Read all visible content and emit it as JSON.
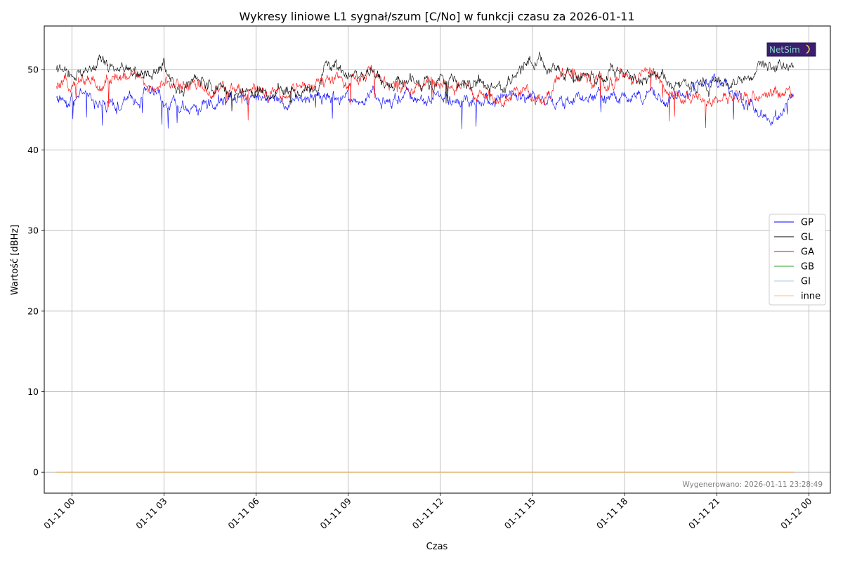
{
  "chart_data": {
    "type": "line",
    "title": "Wykresy liniowe L1 sygnał/szum [C/No] w funkcji czasu za 2026-01-11",
    "xlabel": "Czas",
    "ylabel": "Wartość [dBHz]",
    "x_unit": "hours since 2026-01-11 00:00",
    "x_range": [
      -0.9,
      24.7
    ],
    "ylim": [
      -2.6,
      55.4
    ],
    "yticks": [
      0,
      10,
      20,
      30,
      40,
      50
    ],
    "xticks": [
      {
        "hour": 0,
        "label": "01-11 00"
      },
      {
        "hour": 3,
        "label": "01-11 03"
      },
      {
        "hour": 6,
        "label": "01-11 06"
      },
      {
        "hour": 9,
        "label": "01-11 09"
      },
      {
        "hour": 12,
        "label": "01-11 12"
      },
      {
        "hour": 15,
        "label": "01-11 15"
      },
      {
        "hour": 18,
        "label": "01-11 18"
      },
      {
        "hour": 21,
        "label": "01-11 21"
      },
      {
        "hour": 24,
        "label": "01-12 00"
      }
    ],
    "grid": true,
    "legend_position": "center-right",
    "series": [
      {
        "name": "GP",
        "color": "#0000ff",
        "x": [
          -0.5,
          0.5,
          1.0,
          2.0,
          2.5,
          3.0,
          3.5,
          4.0,
          5.0,
          6.0,
          7.0,
          8.0,
          9.0,
          10.0,
          11.0,
          12.0,
          13.0,
          14.0,
          15.0,
          16.0,
          17.0,
          18.0,
          19.0,
          20.0,
          21.0,
          22.0,
          22.5,
          23.0,
          23.5
        ],
        "y": [
          46.5,
          46.5,
          45.5,
          46.0,
          47.5,
          46.0,
          45.5,
          45.5,
          46.5,
          47.0,
          46.5,
          46.5,
          46.0,
          46.5,
          46.5,
          47.0,
          46.0,
          47.0,
          46.0,
          46.0,
          46.5,
          46.5,
          46.5,
          47.0,
          49.0,
          46.0,
          44.0,
          44.5,
          46.5
        ]
      },
      {
        "name": "GL",
        "color": "#000000",
        "x": [
          -0.5,
          0.0,
          0.5,
          1.0,
          1.5,
          2.0,
          2.5,
          3.0,
          3.5,
          4.0,
          5.0,
          6.0,
          7.0,
          8.0,
          8.5,
          9.0,
          10.0,
          11.0,
          12.0,
          13.0,
          14.0,
          14.5,
          15.0,
          15.5,
          16.0,
          17.0,
          18.0,
          19.0,
          20.0,
          21.0,
          22.0,
          22.5,
          23.0,
          23.5
        ],
        "y": [
          50.0,
          49.0,
          50.0,
          50.5,
          50.0,
          49.5,
          50.0,
          50.5,
          48.0,
          48.5,
          47.5,
          47.0,
          47.5,
          48.0,
          50.5,
          49.5,
          49.0,
          48.5,
          48.5,
          48.5,
          48.0,
          49.5,
          52.0,
          50.0,
          50.0,
          49.5,
          49.5,
          49.0,
          48.0,
          48.5,
          49.0,
          50.0,
          50.5,
          51.0
        ]
      },
      {
        "name": "GA",
        "color": "#ff0000",
        "x": [
          -0.5,
          0.0,
          0.5,
          1.0,
          1.5,
          2.0,
          2.5,
          3.0,
          4.0,
          5.0,
          6.0,
          7.0,
          7.5,
          8.0,
          9.0,
          9.5,
          10.0,
          11.0,
          12.0,
          12.5,
          13.0,
          13.5,
          14.0,
          14.5,
          15.0,
          15.5,
          16.0,
          17.0,
          18.0,
          19.0,
          19.5,
          20.0,
          21.0,
          22.0,
          23.0,
          23.5
        ],
        "y": [
          47.5,
          48.5,
          48.5,
          48.0,
          49.5,
          49.0,
          48.5,
          48.5,
          47.5,
          47.5,
          47.5,
          46.5,
          48.0,
          48.5,
          48.5,
          50.0,
          48.5,
          48.0,
          48.5,
          47.5,
          47.5,
          46.5,
          46.0,
          47.5,
          46.5,
          47.0,
          49.5,
          48.5,
          49.0,
          49.5,
          47.0,
          47.0,
          46.0,
          46.5,
          47.0,
          47.0
        ]
      },
      {
        "name": "GB",
        "color": "#2ca02c",
        "x": [
          -0.5,
          23.5
        ],
        "y": [
          0,
          0
        ]
      },
      {
        "name": "GI",
        "color": "#aec7e8",
        "x": [
          -0.5,
          23.5
        ],
        "y": [
          0,
          0
        ]
      },
      {
        "name": "inne",
        "color": "#ffbb78",
        "x": [
          -0.5,
          23.5
        ],
        "y": [
          0,
          0
        ]
      }
    ]
  },
  "logo": {
    "text": "NetSim"
  },
  "footer": {
    "generated_text": "Wygenerowano: 2026-01-11 23:28:49"
  }
}
